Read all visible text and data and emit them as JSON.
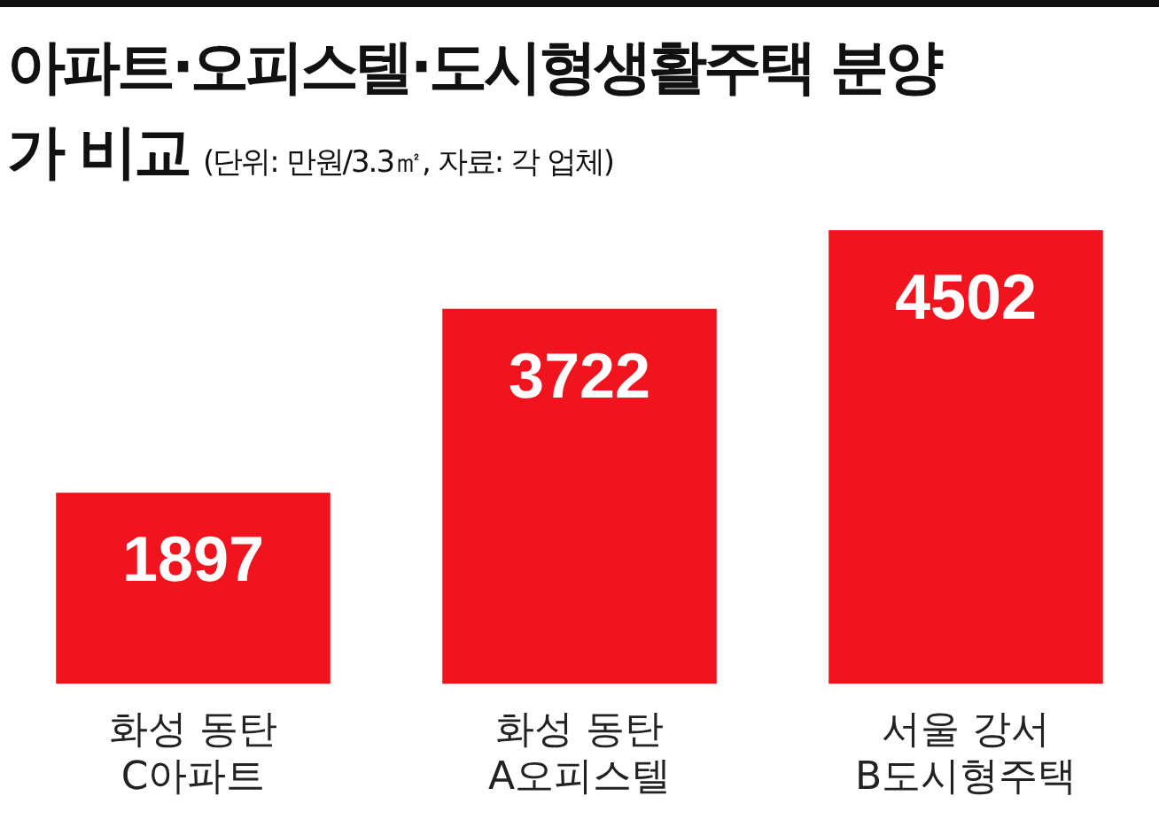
{
  "chart_data": {
    "type": "bar",
    "title": "아파트·오피스텔·도시형생활주택 분양가 비교",
    "subtitle": "(단위: 만원/3.3㎡, 자료: 각 업체)",
    "categories": [
      "화성 동탄\nC아파트",
      "화성 동탄\nA오피스텔",
      "서울 강서\nB도시형주택"
    ],
    "values": [
      1897,
      3722,
      4502
    ],
    "color": "#f0141e",
    "data_labels": true,
    "grid": false,
    "legend": false
  }
}
